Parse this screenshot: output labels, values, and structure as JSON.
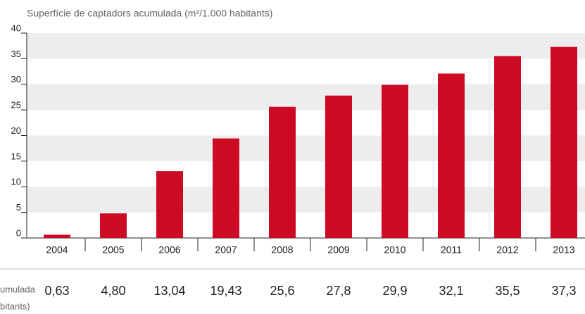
{
  "chart_data": {
    "type": "bar",
    "title": "Superfície de captadors acumulada (m²/1.000 habitants)",
    "row_label": [
      "umulada",
      "bitants)"
    ],
    "categories": [
      "2004",
      "2005",
      "2006",
      "2007",
      "2008",
      "2009",
      "2010",
      "2011",
      "2012",
      "2013"
    ],
    "values": [
      0.63,
      4.8,
      13.04,
      19.43,
      25.6,
      27.8,
      29.9,
      32.1,
      35.5,
      37.3
    ],
    "value_labels": [
      "0,63",
      "4,80",
      "13,04",
      "19,43",
      "25,6",
      "27,8",
      "29,9",
      "32,1",
      "35,5",
      "37,3"
    ],
    "color": "#cc0a23",
    "ylim": [
      0,
      40
    ],
    "yticks": [
      0,
      5,
      10,
      15,
      20,
      25,
      30,
      35,
      40
    ],
    "grid": "bands"
  }
}
